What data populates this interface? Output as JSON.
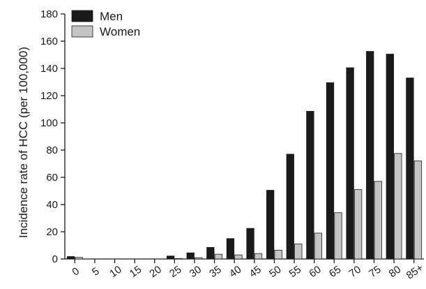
{
  "chart_data": {
    "type": "bar",
    "title": "",
    "xlabel": "",
    "ylabel": "Incidence rate of HCC (per 100,000)",
    "ylim": [
      0,
      180
    ],
    "yticks": [
      0,
      20,
      40,
      60,
      80,
      100,
      120,
      140,
      160,
      180
    ],
    "categories": [
      "0",
      "5",
      "10",
      "15",
      "20",
      "25",
      "30",
      "35",
      "40",
      "45",
      "50",
      "55",
      "60",
      "65",
      "70",
      "75",
      "80",
      "85+"
    ],
    "series": [
      {
        "name": "Men",
        "color": "#1a1a1a",
        "values": [
          1.8,
          0,
          0,
          0,
          0,
          2.2,
          4.5,
          8.5,
          15,
          22.5,
          50.5,
          77,
          108.5,
          129.5,
          140.5,
          152.5,
          150.5,
          133
        ]
      },
      {
        "name": "Women",
        "color": "#c4c4c4",
        "values": [
          1.2,
          0,
          0,
          0,
          0,
          0.3,
          1,
          3.5,
          3,
          4,
          6.5,
          11,
          19,
          34,
          51,
          57,
          77.5,
          72
        ]
      }
    ],
    "legend_position": "top-left",
    "grid": false
  }
}
